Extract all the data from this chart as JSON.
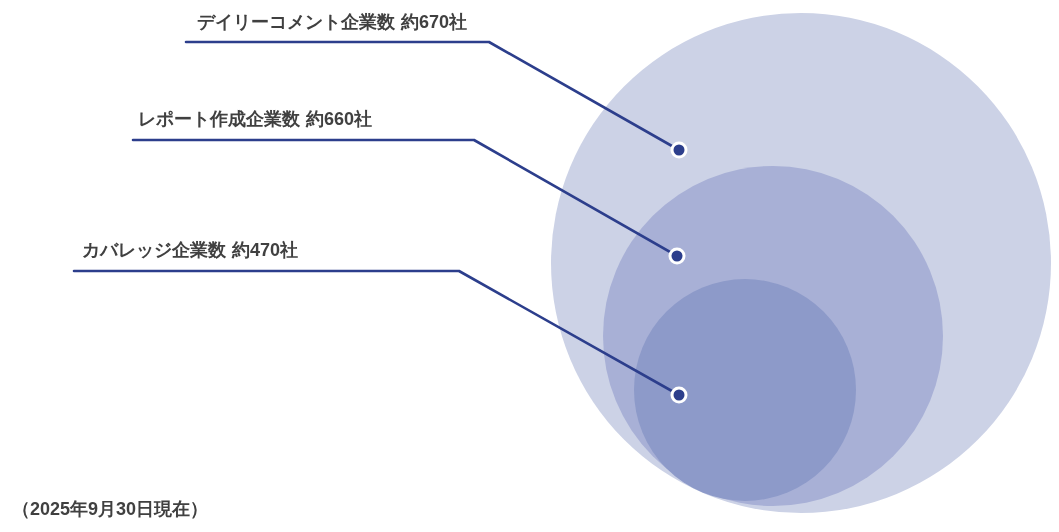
{
  "chart_data": {
    "type": "other",
    "categories": [
      "デイリーコメント企業数",
      "レポート作成企業数",
      "カバレッジ企業数"
    ],
    "values": [
      670,
      660,
      470
    ],
    "value_labels": [
      "約670社",
      "約660社",
      "約470社"
    ],
    "colors": [
      "#ccd2e6",
      "#a8b0d6",
      "#8d9ac9"
    ],
    "annotations": [
      "（2025年9月30日現在）"
    ]
  }
}
